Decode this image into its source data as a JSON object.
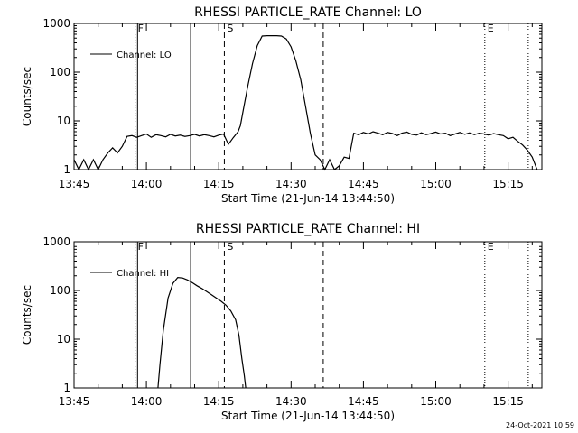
{
  "footer": {
    "timestamp": "24-Oct-2021 10:59"
  },
  "chart_data": [
    {
      "type": "line",
      "title": "RHESSI PARTICLE_RATE Channel: LO",
      "xlabel": "Start Time (21-Jun-14 13:44:50)",
      "ylabel": "Counts/sec",
      "y_scale": "log",
      "ylim": [
        1,
        1000
      ],
      "y_ticks": [
        "1",
        "10",
        "100",
        "1000"
      ],
      "x_ticks": [
        "13:45",
        "14:00",
        "14:15",
        "14:30",
        "14:45",
        "15:00",
        "15:15"
      ],
      "x_tick_minutes": [
        0,
        15,
        30,
        45,
        60,
        75,
        90
      ],
      "xlim_minutes": [
        0,
        97
      ],
      "legend": {
        "label": "Channel: LO",
        "placement": "top-left"
      },
      "markers": [
        {
          "label": "F",
          "time": "13:57.5",
          "style": "dotted"
        },
        {
          "label": "",
          "time": "13:58",
          "style": "solid"
        },
        {
          "label": "",
          "time": "14:09",
          "style": "solid"
        },
        {
          "label": "S",
          "time": "14:16",
          "style": "dashed"
        },
        {
          "label": "",
          "time": "14:36.5",
          "style": "dashed"
        },
        {
          "label": "E",
          "time": "15:10",
          "style": "dotted"
        },
        {
          "label": "",
          "time": "15:19",
          "style": "dotted"
        }
      ],
      "series": [
        {
          "name": "Channel: LO",
          "x_minutes": [
            0,
            1,
            2,
            3,
            4,
            5,
            6,
            7,
            8,
            9,
            10,
            11,
            12,
            13,
            14,
            15,
            16,
            17,
            18,
            19,
            20,
            21,
            22,
            23,
            24,
            25,
            26,
            27,
            28,
            29,
            30,
            31,
            32,
            33,
            34,
            34.5,
            35,
            36,
            37,
            38,
            39,
            40,
            41,
            42,
            43,
            44,
            45,
            46,
            47,
            48,
            49,
            50,
            51,
            52,
            53,
            54,
            55,
            56,
            57,
            58,
            59,
            60,
            61,
            62,
            63,
            64,
            65,
            66,
            67,
            68,
            69,
            70,
            71,
            72,
            73,
            74,
            75,
            76,
            77,
            78,
            79,
            80,
            81,
            82,
            83,
            84,
            85,
            86,
            87,
            88,
            89,
            90,
            91,
            92,
            93,
            94,
            95,
            96
          ],
          "values": [
            1.6,
            1,
            1.6,
            1,
            1.6,
            1,
            1.6,
            2.2,
            2.8,
            2.2,
            3,
            4.8,
            5,
            4.6,
            5,
            5.4,
            4.6,
            5.2,
            5,
            4.7,
            5.3,
            4.9,
            5.1,
            4.8,
            5,
            5.3,
            4.9,
            5.2,
            5,
            4.7,
            5.1,
            5.4,
            3.3,
            4.5,
            6,
            8,
            15,
            50,
            150,
            350,
            550,
            560,
            560,
            560,
            550,
            480,
            330,
            170,
            70,
            20,
            5.5,
            2,
            1.6,
            1,
            1.6,
            1,
            1.2,
            1.8,
            1.7,
            5.6,
            5.2,
            5.8,
            5.4,
            6,
            5.6,
            5.2,
            5.8,
            5.5,
            5,
            5.6,
            5.9,
            5.3,
            5.1,
            5.7,
            5.2,
            5.5,
            5.9,
            5.4,
            5.6,
            5,
            5.4,
            5.8,
            5.3,
            5.7,
            5.2,
            5.6,
            5.4,
            5.1,
            5.5,
            5.2,
            5,
            4.3,
            4.6,
            3.8,
            3.2,
            2.5,
            1.8,
            1
          ]
        }
      ]
    },
    {
      "type": "line",
      "title": "RHESSI PARTICLE_RATE Channel: HI",
      "xlabel": "Start Time (21-Jun-14 13:44:50)",
      "ylabel": "Counts/sec",
      "y_scale": "log",
      "ylim": [
        1,
        1000
      ],
      "y_ticks": [
        "1",
        "10",
        "100",
        "1000"
      ],
      "x_ticks": [
        "13:45",
        "14:00",
        "14:15",
        "14:30",
        "14:45",
        "15:00",
        "15:15"
      ],
      "x_tick_minutes": [
        0,
        15,
        30,
        45,
        60,
        75,
        90
      ],
      "xlim_minutes": [
        0,
        97
      ],
      "legend": {
        "label": "Channel: HI",
        "placement": "top-left"
      },
      "markers": [
        {
          "label": "F",
          "time": "13:57.5",
          "style": "dotted"
        },
        {
          "label": "",
          "time": "13:58",
          "style": "solid"
        },
        {
          "label": "",
          "time": "14:09",
          "style": "solid"
        },
        {
          "label": "S",
          "time": "14:16",
          "style": "dashed"
        },
        {
          "label": "",
          "time": "14:36.5",
          "style": "dashed"
        },
        {
          "label": "E",
          "time": "15:10",
          "style": "dotted"
        },
        {
          "label": "",
          "time": "15:19",
          "style": "dotted"
        }
      ],
      "series": [
        {
          "name": "Channel: HI",
          "x_minutes": [
            17.4,
            17.8,
            18.5,
            19.5,
            20.5,
            21.5,
            22.5,
            23.5,
            24.5,
            25.5,
            26.5,
            27.5,
            28.5,
            29.5,
            30.5,
            31.5,
            32.5,
            33.5,
            34.2,
            34.8,
            35.3,
            35.6
          ],
          "values": [
            1,
            3,
            15,
            70,
            140,
            185,
            180,
            165,
            145,
            125,
            110,
            95,
            82,
            70,
            60,
            50,
            38,
            25,
            12,
            4,
            1.8,
            1
          ]
        }
      ]
    }
  ]
}
